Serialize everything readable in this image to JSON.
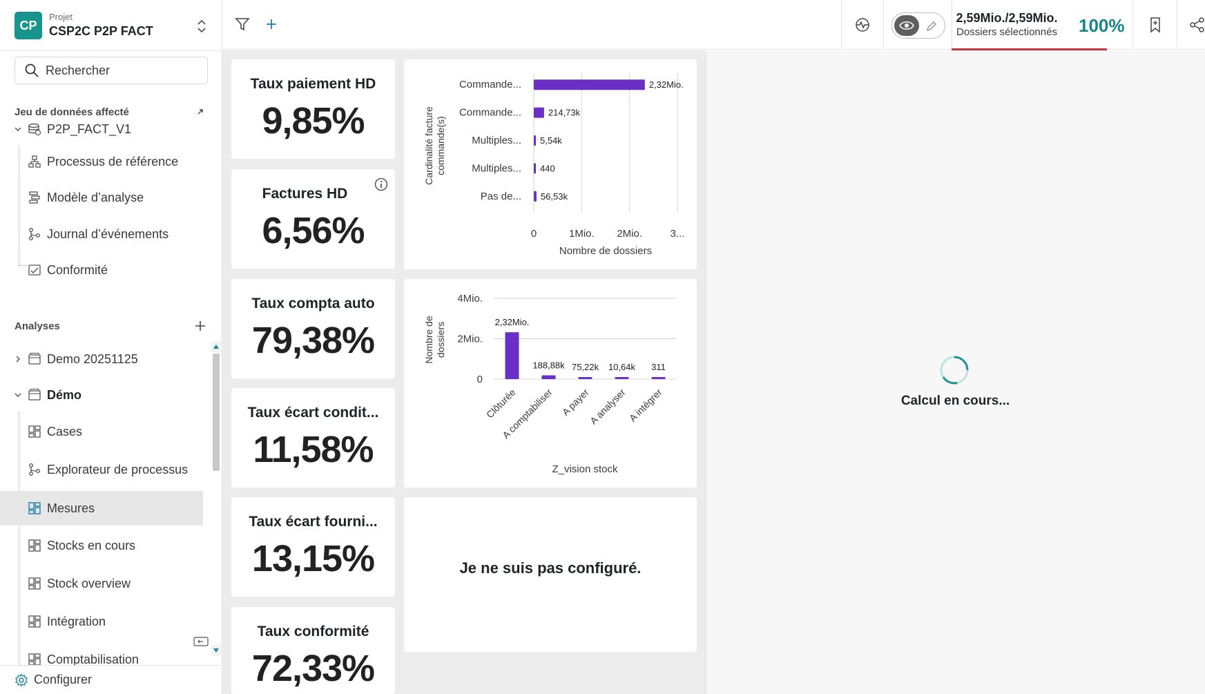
{
  "project": {
    "badge": "CP",
    "label": "Projet",
    "name": "CSP2C P2P FACT"
  },
  "search": {
    "placeholder": "Rechercher"
  },
  "sidebar": {
    "dataset_section": "Jeu de données affecté",
    "dataset": {
      "name": "P2P_FACT_V1"
    },
    "dataset_items": [
      {
        "label": "Processus de référence",
        "icon": "process-icon"
      },
      {
        "label": "Modèle d’analyse",
        "icon": "model-icon"
      },
      {
        "label": "Journal d’événements",
        "icon": "event-log-icon"
      },
      {
        "label": "Conformité",
        "icon": "conformity-icon"
      }
    ],
    "analyses_section": "Analyses",
    "analyses": [
      {
        "label": "Demo 20251125"
      },
      {
        "label": "Démo"
      }
    ],
    "demo_items": [
      {
        "label": "Cases"
      },
      {
        "label": "Explorateur de processus"
      },
      {
        "label": "Mesures",
        "active": true
      },
      {
        "label": "Stocks en cours"
      },
      {
        "label": "Stock overview"
      },
      {
        "label": "Intégration"
      },
      {
        "label": "Comptabilisation"
      }
    ],
    "configure": "Configurer"
  },
  "topbar": {
    "selection_count": "2,59Mio./2,59Mio.",
    "selection_label": "Dossiers sélectionnés",
    "selection_pct": "100%"
  },
  "kpis": [
    {
      "title": "Taux paiement HD",
      "value": "9,85%"
    },
    {
      "title": "Factures HD",
      "value": "6,56%"
    },
    {
      "title": "Taux compta auto",
      "value": "79,38%"
    },
    {
      "title": "Taux écart condit...",
      "value": "11,58%"
    },
    {
      "title": "Taux écart fourni...",
      "value": "13,15%"
    },
    {
      "title": "Taux conformité",
      "value": "72,33%"
    }
  ],
  "chart_data": [
    {
      "type": "bar",
      "orientation": "horizontal",
      "categories": [
        "Commande...",
        "Commande...",
        "Multiples...",
        "Multiples...",
        "Pas de..."
      ],
      "values": [
        2320000,
        214730,
        5540,
        440,
        56530
      ],
      "data_labels": [
        "2,32Mio.",
        "214,73k",
        "5,54k",
        "440",
        "56,53k"
      ],
      "xlabel": "Nombre de dossiers",
      "ylabel": "Cardinalité facture commande(s)",
      "xticks": [
        "0",
        "1Mio.",
        "2Mio.",
        "3..."
      ],
      "xlim": [
        0,
        3000000
      ],
      "color": "#6a2fc6"
    },
    {
      "type": "bar",
      "orientation": "vertical",
      "categories": [
        "Clôturée",
        "A comptabiliser",
        "A payer",
        "A analyser",
        "A intégrer"
      ],
      "values": [
        2320000,
        188880,
        75220,
        10640,
        311
      ],
      "data_labels": [
        "2,32Mio.",
        "188,88k",
        "75,22k",
        "10,64k",
        "311"
      ],
      "xlabel": "Z_vision stock",
      "ylabel": "Nombre de dossiers",
      "yticks": [
        "0",
        "2Mio.",
        "4Mio."
      ],
      "ylim": [
        0,
        4000000
      ],
      "color": "#6a2fc6"
    }
  ],
  "empty_card": {
    "message": "Je ne suis pas configuré."
  },
  "loading": {
    "message": "Calcul en cours..."
  }
}
